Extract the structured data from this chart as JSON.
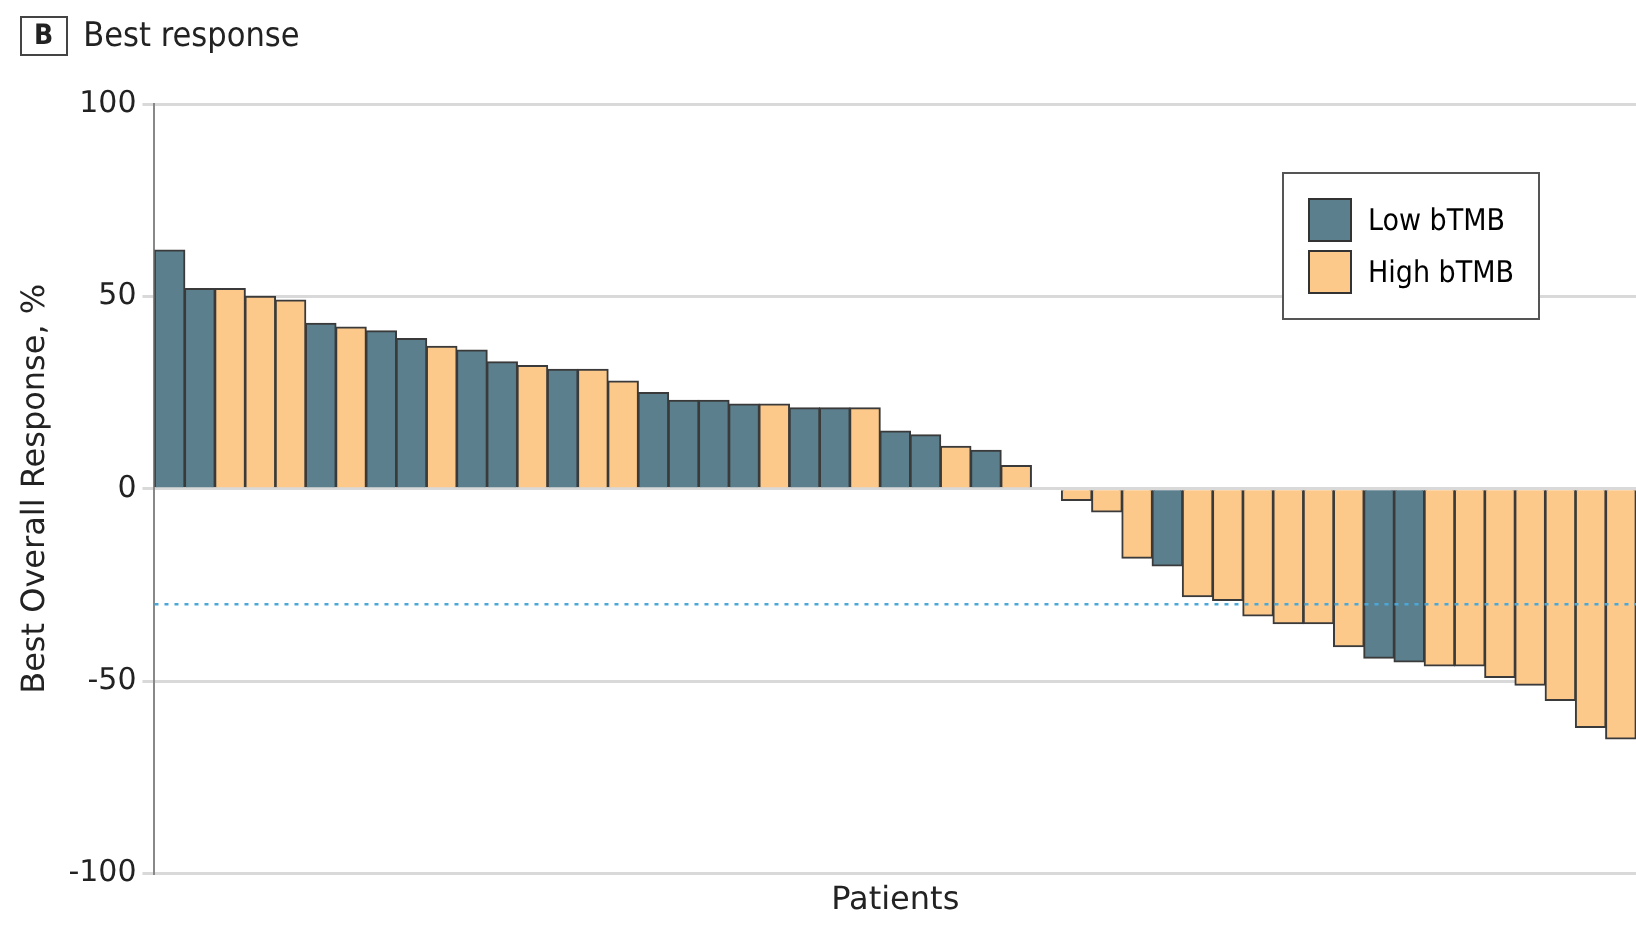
{
  "chart_data": {
    "type": "bar",
    "title": "Best response",
    "annotations": [
      "B"
    ],
    "xlabel": "Patients",
    "ylabel": "Best Overall Response, %",
    "categories": [
      null,
      null,
      null,
      null,
      null,
      null,
      null,
      null,
      null,
      null,
      null,
      null,
      null,
      null,
      null,
      null,
      null,
      null,
      null,
      null,
      null,
      null,
      null,
      null,
      null,
      null,
      null,
      null,
      null,
      null,
      null,
      null,
      null,
      null,
      null,
      null,
      null,
      null,
      null,
      null,
      null,
      null,
      null,
      null,
      null,
      null,
      null,
      null,
      null
    ],
    "series": [
      {
        "name": "Low bTMB",
        "color": "#5b7f8d",
        "values": [
          62,
          52,
          null,
          null,
          null,
          43,
          null,
          41,
          39,
          null,
          36,
          33,
          null,
          31,
          null,
          null,
          25,
          23,
          23,
          22,
          null,
          21,
          21,
          null,
          15,
          14,
          null,
          10,
          null,
          null,
          null,
          null,
          null,
          -20,
          null,
          null,
          null,
          null,
          null,
          null,
          -44,
          -45,
          null,
          null,
          null,
          null,
          null,
          null,
          null
        ]
      },
      {
        "name": "High bTMB",
        "color": "#fdc98a",
        "values": [
          null,
          null,
          52,
          50,
          49,
          null,
          42,
          null,
          null,
          37,
          null,
          null,
          32,
          null,
          31,
          28,
          null,
          null,
          null,
          null,
          22,
          null,
          null,
          21,
          null,
          null,
          11,
          null,
          6,
          null,
          -3,
          -6,
          -18,
          null,
          -28,
          -29,
          -33,
          -35,
          -35,
          -41,
          null,
          null,
          -46,
          -46,
          -49,
          -51,
          -55,
          -62,
          -65
        ]
      }
    ],
    "ylim": [
      -100,
      100
    ],
    "yticks": [
      -100,
      -50,
      0,
      50,
      100
    ],
    "grid": "y",
    "legend": "top right",
    "ref_lines": [
      {
        "axis": "y",
        "value": -30,
        "color": "#4aa8d8",
        "line_style": "dotted"
      }
    ]
  }
}
